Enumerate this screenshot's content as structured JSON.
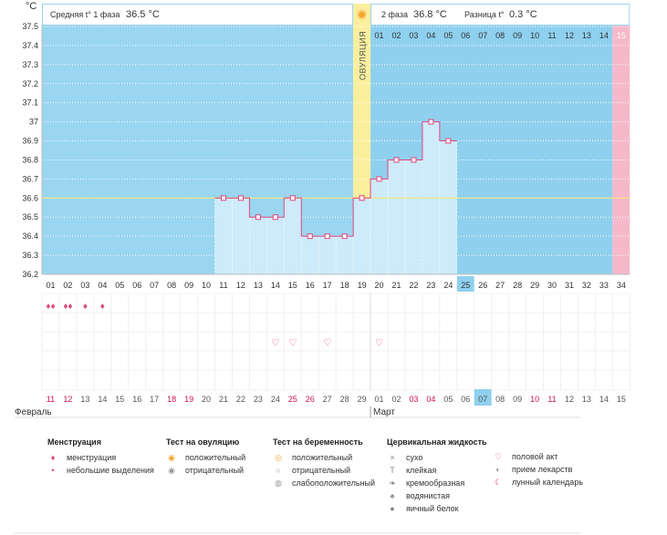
{
  "chart_data": {
    "type": "line",
    "y_axis": {
      "unit": "°C",
      "min": 36.2,
      "max": 37.5,
      "ticks": [
        "37.5",
        "37.4",
        "37.3",
        "37.2",
        "37.1",
        "37",
        "36.9",
        "36.8",
        "36.7",
        "36.6",
        "36.5",
        "36.4",
        "36.3",
        "36.2"
      ]
    },
    "header": {
      "phase1_label": "Средняя t° 1 фаза",
      "phase1_value": "36.5 °C",
      "phase2_label": "2 фаза",
      "phase2_value": "36.8 °C",
      "diff_label": "Разница t°",
      "diff_value": "0.3 °C"
    },
    "ovulation_label": "ОВУЛЯЦИЯ",
    "ovulation_day": 19,
    "cover_line": 36.6,
    "phase2_days": [
      "01",
      "02",
      "03",
      "04",
      "05",
      "06",
      "07",
      "08",
      "09",
      "10",
      "11",
      "12",
      "13",
      "14",
      "15"
    ],
    "cycle_days": [
      "01",
      "02",
      "03",
      "04",
      "05",
      "06",
      "07",
      "08",
      "09",
      "10",
      "11",
      "12",
      "13",
      "14",
      "15",
      "16",
      "17",
      "18",
      "19",
      "20",
      "21",
      "22",
      "23",
      "24",
      "25",
      "26",
      "27",
      "28",
      "29",
      "30",
      "31",
      "32",
      "33",
      "34"
    ],
    "current_cycle_day": 25,
    "series": [
      {
        "x": [
          11,
          12,
          13,
          14,
          15,
          16,
          17,
          18,
          19,
          20,
          21,
          22,
          23,
          24
        ],
        "values": [
          36.6,
          36.6,
          36.5,
          36.5,
          36.6,
          36.4,
          36.4,
          36.4,
          36.6,
          36.7,
          36.8,
          36.8,
          37.0,
          36.9
        ]
      }
    ],
    "date_labels": [
      "11",
      "12",
      "13",
      "14",
      "15",
      "16",
      "17",
      "18",
      "19",
      "20",
      "21",
      "22",
      "23",
      "24",
      "25",
      "26",
      "27",
      "28",
      "29",
      "01",
      "02",
      "03",
      "04",
      "05",
      "06",
      "07",
      "08",
      "09",
      "10",
      "11",
      "12",
      "13",
      "14",
      "15"
    ],
    "date_colors": [
      "#cc1155",
      "#cc1155",
      "#555555",
      "#555555",
      "#555555",
      "#555555",
      "#555555",
      "#cc1155",
      "#cc1155",
      "#555555",
      "#555555",
      "#555555",
      "#555555",
      "#555555",
      "#cc1155",
      "#cc1155",
      "#555555",
      "#555555",
      "#555555",
      "#555555",
      "#555555",
      "#cc1155",
      "#cc1155",
      "#555555",
      "#555555",
      "#555555",
      "#555555",
      "#555555",
      "#cc1155",
      "#cc1155",
      "#555555",
      "#555555",
      "#555555",
      "#555555"
    ],
    "today_date_index": 25,
    "month_labels": [
      "Февраль",
      "Март"
    ],
    "menstruation": {
      "heavy_days": [
        1,
        2
      ],
      "light_days": [
        3,
        4
      ]
    },
    "intercourse_days": [
      14,
      15,
      17,
      20
    ]
  },
  "legend": {
    "menstruation": {
      "title": "Менструация",
      "items": [
        "менструация",
        "небольшие выделения"
      ]
    },
    "ovulation_test": {
      "title": "Тест на овуляцию",
      "items": [
        "положительный",
        "отрицательный"
      ]
    },
    "pregnancy_test": {
      "title": "Тест на беременность",
      "items": [
        "положительный",
        "отрицательный",
        "слабоположительный"
      ]
    },
    "cervical": {
      "title": "Цервикальная жидкость",
      "items": [
        "сухо",
        "клейкая",
        "кремообразная",
        "водянистая",
        "яичный белок"
      ]
    },
    "other": {
      "items": [
        "половой акт",
        "прием лекарств",
        "лунный календарь"
      ]
    }
  },
  "colors": {
    "phase1_bg": "#9ad6f0",
    "phase2_bg": "#8fd0ee",
    "ovulation": "#fbef9e",
    "period_end": "#f6b8ca",
    "bar_fill": "#cdebfa",
    "line": "#e0467a",
    "cover_line": "#f4e57a",
    "accent_red": "#cc1155"
  }
}
